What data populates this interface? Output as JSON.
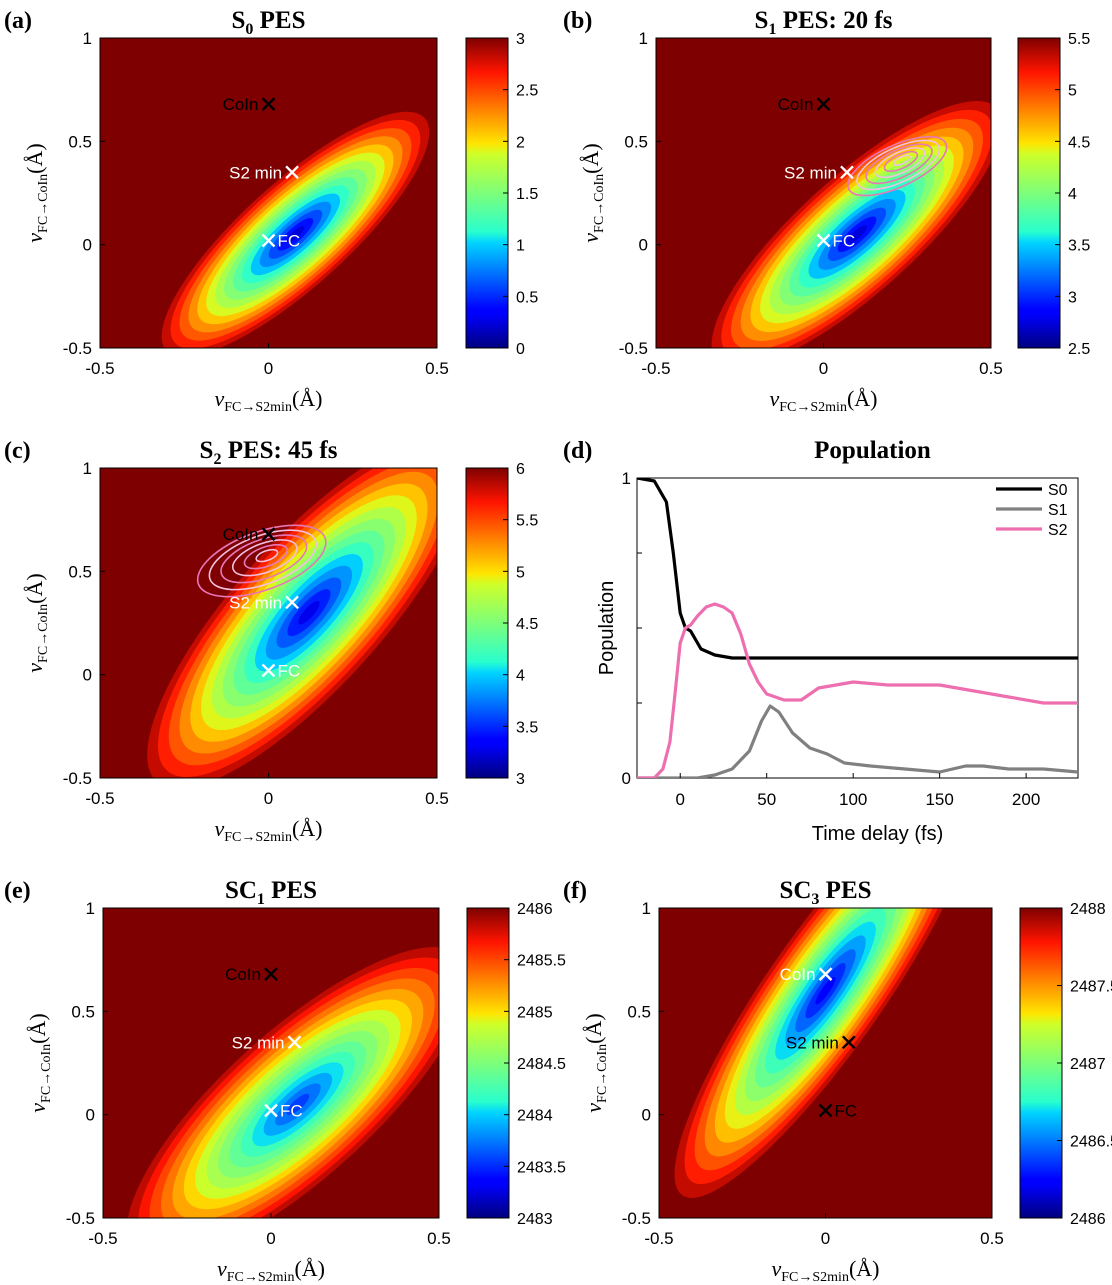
{
  "chart_data": [
    {
      "panel": "(a)",
      "type": "heatmap",
      "title": "S",
      "title_sub": "0",
      "title_rest": " PES",
      "xlabel": "ν",
      "xlabel_sub": "FC→S2min",
      "xlabel_unit": "(Å)",
      "ylabel": "ν",
      "ylabel_sub": "FC→CoIn",
      "ylabel_unit": "(Å)",
      "xlim": [
        -0.5,
        0.5
      ],
      "ylim": [
        -0.5,
        1
      ],
      "xticks": [
        "-0.5",
        "0",
        "0.5"
      ],
      "yticks": [
        "-0.5",
        "0",
        "0.5",
        "1"
      ],
      "colorbar": {
        "min": 0,
        "max": 3,
        "ticks": [
          "0",
          "0.5",
          "1",
          "1.5",
          "2",
          "2.5",
          "3"
        ]
      },
      "surface": {
        "center": [
          0.08,
          0.05
        ],
        "angle_deg": -42,
        "semi_axes": [
          0.55,
          0.27
        ],
        "min_value": 0.05,
        "max_value": 3
      },
      "markers": [
        {
          "label": "CoIn",
          "x": 0.0,
          "y": 0.68,
          "color": "#000000"
        },
        {
          "label": "S2 min",
          "x": 0.07,
          "y": 0.35,
          "color": "#ffffff"
        },
        {
          "label": "FC",
          "x": 0.0,
          "y": 0.02,
          "color": "#ffffff"
        }
      ]
    },
    {
      "panel": "(b)",
      "type": "heatmap",
      "title": "S",
      "title_sub": "1",
      "title_rest": " PES: 20 fs",
      "xlabel": "ν",
      "xlabel_sub": "FC→S2min",
      "xlabel_unit": "(Å)",
      "ylabel": "ν",
      "ylabel_sub": "FC→CoIn",
      "ylabel_unit": "(Å)",
      "xlim": [
        -0.5,
        0.5
      ],
      "ylim": [
        -0.5,
        1
      ],
      "xticks": [
        "-0.5",
        "0",
        "0.5"
      ],
      "yticks": [
        "-0.5",
        "0",
        "0.5",
        "1"
      ],
      "colorbar": {
        "min": 2.5,
        "max": 5.5,
        "ticks": [
          "2.5",
          "3",
          "3.5",
          "4",
          "4.5",
          "5",
          "5.5"
        ]
      },
      "surface": {
        "center": [
          0.1,
          0.05
        ],
        "angle_deg": -42,
        "semi_axes": [
          0.6,
          0.3
        ],
        "min_value": 2.55,
        "max_value": 5.5
      },
      "markers": [
        {
          "label": "CoIn",
          "x": 0.0,
          "y": 0.68,
          "color": "#000000"
        },
        {
          "label": "S2 min",
          "x": 0.07,
          "y": 0.35,
          "color": "#ffffff"
        },
        {
          "label": "FC",
          "x": 0.0,
          "y": 0.02,
          "color": "#ffffff"
        }
      ],
      "wavepacket": {
        "center": [
          0.22,
          0.38
        ],
        "angle_deg": -25,
        "semi_axes": [
          0.16,
          0.1
        ],
        "rings": 6
      }
    },
    {
      "panel": "(c)",
      "type": "heatmap",
      "title": "S",
      "title_sub": "2",
      "title_rest": " PES: 45 fs",
      "xlabel": "ν",
      "xlabel_sub": "FC→S2min",
      "xlabel_unit": "(Å)",
      "ylabel": "ν",
      "ylabel_sub": "FC→CoIn",
      "ylabel_unit": "(Å)",
      "xlim": [
        -0.5,
        0.5
      ],
      "ylim": [
        -0.5,
        1
      ],
      "xticks": [
        "-0.5",
        "0",
        "0.5"
      ],
      "yticks": [
        "-0.5",
        "0",
        "0.5",
        "1"
      ],
      "colorbar": {
        "min": 3,
        "max": 6,
        "ticks": [
          "3",
          "3.5",
          "4",
          "4.5",
          "5",
          "5.5",
          "6"
        ]
      },
      "surface": {
        "center": [
          0.12,
          0.3
        ],
        "angle_deg": -48,
        "semi_axes": [
          0.72,
          0.38
        ],
        "min_value": 3.1,
        "max_value": 6
      },
      "markers": [
        {
          "label": "CoIn",
          "x": 0.0,
          "y": 0.68,
          "color": "#000000"
        },
        {
          "label": "S2 min",
          "x": 0.07,
          "y": 0.35,
          "color": "#ffffff"
        },
        {
          "label": "FC",
          "x": 0.0,
          "y": 0.02,
          "color": "#ffffff"
        }
      ],
      "wavepacket": {
        "center": [
          -0.02,
          0.55
        ],
        "angle_deg": -20,
        "semi_axes": [
          0.2,
          0.14
        ],
        "rings": 6
      }
    },
    {
      "panel": "(d)",
      "type": "line",
      "title": "Population",
      "xlabel": "Time delay (fs)",
      "ylabel": "Population",
      "xlim": [
        -25,
        230
      ],
      "ylim": [
        0,
        1
      ],
      "xticks": [
        "0",
        "50",
        "100",
        "150",
        "200"
      ],
      "yticks": [
        "0",
        "1"
      ],
      "legend_position": "top-right",
      "series": [
        {
          "name": "S0",
          "color": "#000000",
          "x": [
            -25,
            -15,
            -8,
            -4,
            0,
            3,
            6,
            9,
            12,
            20,
            30,
            40,
            60,
            100,
            150,
            200,
            230
          ],
          "y": [
            1.0,
            0.99,
            0.92,
            0.75,
            0.55,
            0.5,
            0.49,
            0.46,
            0.43,
            0.41,
            0.4,
            0.4,
            0.4,
            0.4,
            0.4,
            0.4,
            0.4
          ]
        },
        {
          "name": "S1",
          "color": "#808080",
          "x": [
            -25,
            0,
            10,
            20,
            30,
            40,
            47,
            52,
            57,
            65,
            75,
            85,
            95,
            110,
            130,
            150,
            165,
            175,
            190,
            210,
            230
          ],
          "y": [
            0.0,
            0.0,
            0.0,
            0.01,
            0.03,
            0.09,
            0.19,
            0.24,
            0.22,
            0.15,
            0.1,
            0.08,
            0.05,
            0.04,
            0.03,
            0.02,
            0.04,
            0.04,
            0.03,
            0.03,
            0.02
          ]
        },
        {
          "name": "S2",
          "color": "#ee6fb0",
          "x": [
            -25,
            -15,
            -10,
            -6,
            -3,
            0,
            3,
            6,
            10,
            15,
            20,
            25,
            30,
            35,
            40,
            45,
            50,
            60,
            70,
            80,
            90,
            100,
            120,
            150,
            170,
            190,
            210,
            230
          ],
          "y": [
            0.0,
            0.0,
            0.03,
            0.12,
            0.28,
            0.45,
            0.5,
            0.51,
            0.54,
            0.57,
            0.58,
            0.57,
            0.55,
            0.48,
            0.38,
            0.32,
            0.28,
            0.26,
            0.26,
            0.3,
            0.31,
            0.32,
            0.31,
            0.31,
            0.29,
            0.27,
            0.25,
            0.25
          ]
        }
      ]
    },
    {
      "panel": "(e)",
      "type": "heatmap",
      "title": "SC",
      "title_sub": "1",
      "title_rest": " PES",
      "xlabel": "ν",
      "xlabel_sub": "FC→S2min",
      "xlabel_unit": "(Å)",
      "ylabel": "ν",
      "ylabel_sub": "FC→CoIn",
      "ylabel_unit": "(Å)",
      "xlim": [
        -0.5,
        0.5
      ],
      "ylim": [
        -0.5,
        1
      ],
      "xticks": [
        "-0.5",
        "0",
        "0.5"
      ],
      "yticks": [
        "-0.5",
        "0",
        "0.5",
        "1"
      ],
      "colorbar": {
        "min": 2483,
        "max": 2486,
        "ticks": [
          "2483",
          "2483.5",
          "2484",
          "2484.5",
          "2485",
          "2485.5",
          "2486"
        ]
      },
      "surface": {
        "center": [
          0.08,
          0.05
        ],
        "angle_deg": -42,
        "semi_axes": [
          0.7,
          0.38
        ],
        "min_value": 2483.4,
        "max_value": 2486
      },
      "markers": [
        {
          "label": "CoIn",
          "x": 0.0,
          "y": 0.68,
          "color": "#000000"
        },
        {
          "label": "S2 min",
          "x": 0.07,
          "y": 0.35,
          "color": "#ffffff"
        },
        {
          "label": "FC",
          "x": 0.0,
          "y": 0.02,
          "color": "#ffffff"
        }
      ]
    },
    {
      "panel": "(f)",
      "type": "heatmap",
      "title": "SC",
      "title_sub": "3",
      "title_rest": " PES",
      "xlabel": "ν",
      "xlabel_sub": "FC→S2min",
      "xlabel_unit": "(Å)",
      "ylabel": "ν",
      "ylabel_sub": "FC→CoIn",
      "ylabel_unit": "(Å)",
      "xlim": [
        -0.5,
        0.5
      ],
      "ylim": [
        -0.5,
        1
      ],
      "xticks": [
        "-0.5",
        "0",
        "0.5"
      ],
      "yticks": [
        "-0.5",
        "0",
        "0.5",
        "1"
      ],
      "colorbar": {
        "min": 2486,
        "max": 2488,
        "ticks": [
          "2486",
          "2486.5",
          "2487",
          "2487.5",
          "2488"
        ]
      },
      "surface": {
        "center": [
          0.0,
          0.6
        ],
        "angle_deg": -55,
        "semi_axes": [
          0.8,
          0.3
        ],
        "min_value": 2486.1,
        "max_value": 2488
      },
      "markers": [
        {
          "label": "CoIn",
          "x": 0.0,
          "y": 0.68,
          "color": "#ffffff"
        },
        {
          "label": "S2 min",
          "x": 0.07,
          "y": 0.35,
          "color": "#000000"
        },
        {
          "label": "FC",
          "x": 0.0,
          "y": 0.02,
          "color": "#000000"
        }
      ]
    }
  ]
}
